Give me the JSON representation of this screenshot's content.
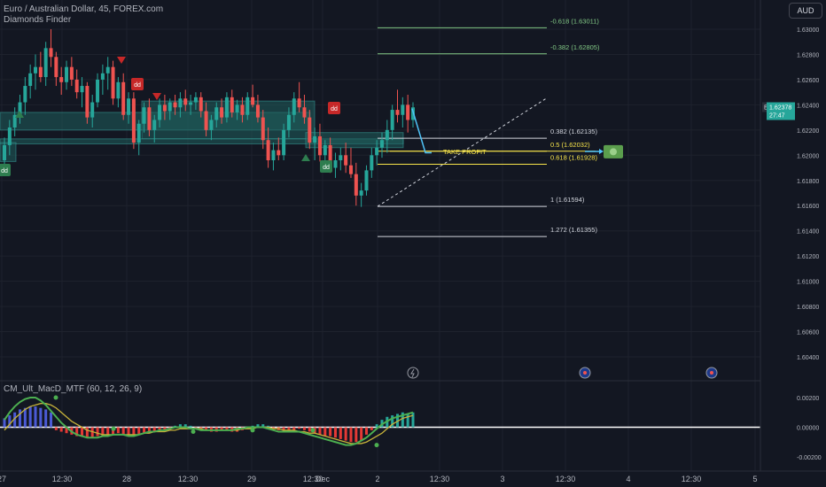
{
  "legend": {
    "symbol_line": "Euro / Australian Dollar, 45, FOREX.com",
    "indicator": "Diamonds Finder",
    "macd": "CM_Ult_MacD_MTF (60, 12, 26, 9)"
  },
  "currency_button": "AUD",
  "price_tag": {
    "symbol": "EURAUD",
    "price": "1.62378",
    "countdown": "27:47"
  },
  "take_profit_label": "TAKE PROFIT",
  "colors": {
    "up": "#26a69a",
    "down": "#ef5350",
    "background": "#131722",
    "grid": "#1e222d",
    "zone": "#1f5e5c",
    "fib_line": "#d1d4dc",
    "fib_green": "#81c784",
    "fib_yellow": "#f7e44a",
    "macd_line": "#4caf50",
    "signal_line": "#c6b23a"
  },
  "icons": [
    "dd-sell-marker",
    "dd-buy-marker",
    "triangle-up-marker",
    "triangle-down-marker",
    "lightning-icon",
    "flag-icon",
    "money-icon",
    "arrow-icon"
  ],
  "chart_data": {
    "type": "candlestick",
    "symbol": "EURAUD",
    "timeframe": "45",
    "price_axis": {
      "ticks": [
        "1.63000",
        "1.62800",
        "1.62600",
        "1.62400",
        "1.62200",
        "1.62000",
        "1.61800",
        "1.61600",
        "1.61400",
        "1.61200",
        "1.61000",
        "1.60800",
        "1.60600",
        "1.60400"
      ],
      "range": [
        1.603,
        1.6313
      ]
    },
    "time_axis": {
      "ticks": [
        "27",
        "12:30",
        "28",
        "12:30",
        "29",
        "12:30",
        "Dec",
        "2",
        "12:30",
        "3",
        "12:30",
        "4",
        "12:30",
        "5"
      ]
    },
    "last_price": 1.62378,
    "fibonacci": [
      {
        "label": "-0.618 (1.63011)",
        "value": 1.63011,
        "tone": "green"
      },
      {
        "label": "-0.382 (1.62805)",
        "value": 1.62805,
        "tone": "green"
      },
      {
        "label": "0.382 (1.62135)",
        "value": 1.62135,
        "tone": "white"
      },
      {
        "label": "0.5 (1.62032)",
        "value": 1.62032,
        "tone": "yellow"
      },
      {
        "label": "0.618 (1.61928)",
        "value": 1.61928,
        "tone": "yellow"
      },
      {
        "label": "1 (1.61594)",
        "value": 1.61594,
        "tone": "white"
      },
      {
        "label": "1.272 (1.61355)",
        "value": 1.61355,
        "tone": "white"
      }
    ],
    "macd_axis": {
      "ticks": [
        "0.00200",
        "0.00000",
        "-0.00200"
      ],
      "range": [
        -0.0025,
        0.0025
      ]
    },
    "ohlc": [
      [
        1.6196,
        1.6214,
        1.6188,
        1.6208
      ],
      [
        1.6208,
        1.6228,
        1.62,
        1.6222
      ],
      [
        1.6222,
        1.6238,
        1.6215,
        1.6232
      ],
      [
        1.6232,
        1.6248,
        1.6225,
        1.6242
      ],
      [
        1.6242,
        1.6262,
        1.6232,
        1.6255
      ],
      [
        1.6255,
        1.6272,
        1.6245,
        1.6265
      ],
      [
        1.6265,
        1.628,
        1.6252,
        1.627
      ],
      [
        1.627,
        1.6282,
        1.6258,
        1.6262
      ],
      [
        1.6262,
        1.629,
        1.6255,
        1.6285
      ],
      [
        1.6285,
        1.63,
        1.627,
        1.6278
      ],
      [
        1.6278,
        1.6282,
        1.6255,
        1.6262
      ],
      [
        1.6262,
        1.627,
        1.6248,
        1.6258
      ],
      [
        1.6258,
        1.6275,
        1.6252,
        1.627
      ],
      [
        1.627,
        1.6278,
        1.6255,
        1.626
      ],
      [
        1.626,
        1.6268,
        1.6245,
        1.625
      ],
      [
        1.625,
        1.6262,
        1.6238,
        1.6255
      ],
      [
        1.6255,
        1.6258,
        1.6225,
        1.623
      ],
      [
        1.623,
        1.6248,
        1.6222,
        1.6242
      ],
      [
        1.6242,
        1.6265,
        1.6238,
        1.626
      ],
      [
        1.626,
        1.6272,
        1.6248,
        1.6265
      ],
      [
        1.6265,
        1.6278,
        1.6252,
        1.627
      ],
      [
        1.627,
        1.6275,
        1.624,
        1.6245
      ],
      [
        1.6245,
        1.6262,
        1.6238,
        1.6258
      ],
      [
        1.6258,
        1.6265,
        1.6228,
        1.6232
      ],
      [
        1.6232,
        1.625,
        1.6225,
        1.6245
      ],
      [
        1.6245,
        1.625,
        1.6205,
        1.621
      ],
      [
        1.621,
        1.6228,
        1.62,
        1.6225
      ],
      [
        1.6225,
        1.6242,
        1.6218,
        1.6238
      ],
      [
        1.6238,
        1.6245,
        1.6215,
        1.622
      ],
      [
        1.622,
        1.6232,
        1.621,
        1.6228
      ],
      [
        1.6228,
        1.6245,
        1.6222,
        1.624
      ],
      [
        1.624,
        1.6248,
        1.6228,
        1.6235
      ],
      [
        1.6235,
        1.6245,
        1.6228,
        1.6242
      ],
      [
        1.6242,
        1.6248,
        1.6232,
        1.6238
      ],
      [
        1.6238,
        1.625,
        1.623,
        1.6245
      ],
      [
        1.6245,
        1.6252,
        1.6235,
        1.624
      ],
      [
        1.624,
        1.6248,
        1.6232,
        1.6242
      ],
      [
        1.6242,
        1.625,
        1.6236,
        1.6246
      ],
      [
        1.6246,
        1.625,
        1.623,
        1.6235
      ],
      [
        1.6235,
        1.6242,
        1.6215,
        1.622
      ],
      [
        1.622,
        1.6232,
        1.6212,
        1.6228
      ],
      [
        1.6228,
        1.6242,
        1.6222,
        1.6238
      ],
      [
        1.6238,
        1.6245,
        1.6225,
        1.623
      ],
      [
        1.623,
        1.625,
        1.6226,
        1.6246
      ],
      [
        1.6246,
        1.6252,
        1.623,
        1.6234
      ],
      [
        1.6234,
        1.6244,
        1.6228,
        1.624
      ],
      [
        1.624,
        1.6246,
        1.6226,
        1.6232
      ],
      [
        1.6232,
        1.625,
        1.6228,
        1.6246
      ],
      [
        1.6246,
        1.6256,
        1.6238,
        1.624
      ],
      [
        1.624,
        1.6248,
        1.6226,
        1.623
      ],
      [
        1.623,
        1.6236,
        1.6205,
        1.6212
      ],
      [
        1.6212,
        1.6222,
        1.619,
        1.6196
      ],
      [
        1.6196,
        1.621,
        1.6188,
        1.6204
      ],
      [
        1.6204,
        1.6214,
        1.6196,
        1.62
      ],
      [
        1.62,
        1.6225,
        1.6196,
        1.622
      ],
      [
        1.622,
        1.6238,
        1.6214,
        1.6232
      ],
      [
        1.6232,
        1.625,
        1.6226,
        1.6245
      ],
      [
        1.6245,
        1.6258,
        1.6234,
        1.6238
      ],
      [
        1.6238,
        1.6248,
        1.6225,
        1.623
      ],
      [
        1.623,
        1.6236,
        1.6205,
        1.621
      ],
      [
        1.621,
        1.6222,
        1.6196,
        1.6215
      ],
      [
        1.6215,
        1.6225,
        1.6195,
        1.62
      ],
      [
        1.62,
        1.6212,
        1.619,
        1.6208
      ],
      [
        1.6208,
        1.6214,
        1.6186,
        1.619
      ],
      [
        1.619,
        1.6202,
        1.6182,
        1.6196
      ],
      [
        1.6196,
        1.6206,
        1.6188,
        1.62
      ],
      [
        1.62,
        1.621,
        1.6186,
        1.6192
      ],
      [
        1.6192,
        1.6206,
        1.6182,
        1.6185
      ],
      [
        1.6185,
        1.6194,
        1.616,
        1.6168
      ],
      [
        1.6168,
        1.6178,
        1.6159,
        1.6172
      ],
      [
        1.6172,
        1.6192,
        1.6168,
        1.6188
      ],
      [
        1.6188,
        1.6206,
        1.6182,
        1.62
      ],
      [
        1.62,
        1.6212,
        1.6192,
        1.6206
      ],
      [
        1.6206,
        1.6218,
        1.6198,
        1.6212
      ],
      [
        1.6212,
        1.6228,
        1.6202,
        1.622
      ],
      [
        1.622,
        1.624,
        1.6212,
        1.6236
      ],
      [
        1.6236,
        1.6252,
        1.6226,
        1.6232
      ],
      [
        1.6232,
        1.6246,
        1.6222,
        1.624
      ],
      [
        1.624,
        1.6248,
        1.6218,
        1.6228
      ],
      [
        1.6228,
        1.6242,
        1.6222,
        1.6238
      ]
    ],
    "macd_hist": [
      0.0006,
      0.0008,
      0.001,
      0.0012,
      0.0013,
      0.0014,
      0.0014,
      0.0013,
      0.0012,
      0.001,
      -0.0002,
      -0.0003,
      -0.0004,
      -0.0005,
      -0.0006,
      -0.0006,
      -0.0007,
      -0.0007,
      -0.0006,
      -0.0006,
      -0.0005,
      -0.0005,
      -0.0004,
      -0.0005,
      -0.0006,
      -0.0006,
      -0.0005,
      -0.0004,
      -0.0004,
      -0.0003,
      -0.0003,
      -0.0002,
      -0.0002,
      0.0001,
      0.0002,
      0.0002,
      0.0001,
      -0.0001,
      -0.0002,
      -0.0002,
      -0.0003,
      -0.0003,
      -0.0002,
      -0.0002,
      -0.0003,
      -0.0003,
      -0.0002,
      -0.0001,
      0.0001,
      0.0002,
      0.0002,
      0.0001,
      -0.0001,
      -0.0002,
      -0.0003,
      -0.0003,
      -0.0002,
      -0.0001,
      -0.0002,
      -0.0003,
      -0.0004,
      -0.0005,
      -0.0006,
      -0.0006,
      -0.0007,
      -0.0008,
      -0.0009,
      -0.001,
      -0.001,
      -0.0009,
      -0.0005,
      -0.0002,
      0.0002,
      0.0005,
      0.0007,
      0.0008,
      0.0009,
      0.001,
      0.0009,
      0.001
    ],
    "macd_line": [
      0.0005,
      0.001,
      0.0014,
      0.0017,
      0.0019,
      0.002,
      0.002,
      0.0018,
      0.0015,
      0.0011,
      0.0007,
      0.0003,
      0.0,
      -0.0003,
      -0.0005,
      -0.0006,
      -0.0007,
      -0.0007,
      -0.0007,
      -0.0006,
      -0.0006,
      -0.0005,
      -0.0005,
      -0.0005,
      -0.0006,
      -0.0006,
      -0.0005,
      -0.0004,
      -0.0003,
      -0.0003,
      -0.0002,
      -0.0002,
      -0.0001,
      0.0,
      0.0,
      0.0,
      -0.0001,
      -0.0001,
      -0.0002,
      -0.0002,
      -0.0002,
      -0.0002,
      -0.0002,
      -0.0002,
      -0.0002,
      -0.0001,
      -0.0001,
      0.0,
      0.0,
      0.0,
      0.0,
      -0.0001,
      -0.0002,
      -0.0003,
      -0.0003,
      -0.0003,
      -0.0003,
      -0.0003,
      -0.0004,
      -0.0005,
      -0.0006,
      -0.0007,
      -0.0008,
      -0.0009,
      -0.001,
      -0.0011,
      -0.0012,
      -0.0012,
      -0.0011,
      -0.0009,
      -0.0007,
      -0.0004,
      -0.0001,
      0.0002,
      0.0004,
      0.0006,
      0.0007,
      0.0008,
      0.0009,
      0.001
    ],
    "signal_line": [
      -0.0002,
      0.0002,
      0.0006,
      0.0009,
      0.0012,
      0.0014,
      0.0015,
      0.0016,
      0.0016,
      0.0015,
      0.0013,
      0.001,
      0.0007,
      0.0004,
      0.0002,
      0.0,
      -0.0002,
      -0.0003,
      -0.0004,
      -0.0005,
      -0.0005,
      -0.0005,
      -0.0005,
      -0.0005,
      -0.0005,
      -0.0005,
      -0.0005,
      -0.0004,
      -0.0004,
      -0.0003,
      -0.0003,
      -0.0003,
      -0.0002,
      -0.0002,
      -0.0001,
      -0.0001,
      -0.0001,
      -0.0001,
      -0.0001,
      -0.0002,
      -0.0002,
      -0.0002,
      -0.0002,
      -0.0002,
      -0.0002,
      -0.0002,
      -0.0001,
      -0.0001,
      -0.0001,
      0.0,
      0.0,
      0.0,
      -0.0001,
      -0.0001,
      -0.0002,
      -0.0002,
      -0.0002,
      -0.0003,
      -0.0003,
      -0.0004,
      -0.0004,
      -0.0005,
      -0.0006,
      -0.0007,
      -0.0008,
      -0.0009,
      -0.001,
      -0.0011,
      -0.0011,
      -0.0011,
      -0.001,
      -0.0008,
      -0.0006,
      -0.0004,
      -0.0001,
      0.0002,
      0.0004,
      0.0006,
      0.0007,
      0.0008
    ]
  }
}
